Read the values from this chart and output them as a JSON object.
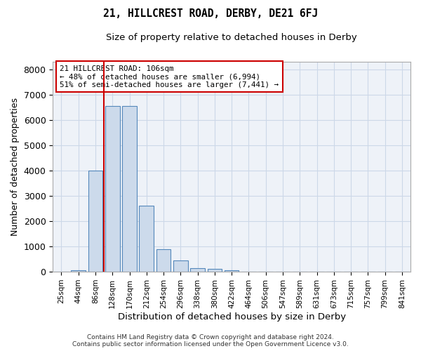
{
  "title": "21, HILLCREST ROAD, DERBY, DE21 6FJ",
  "subtitle": "Size of property relative to detached houses in Derby",
  "xlabel": "Distribution of detached houses by size in Derby",
  "ylabel": "Number of detached properties",
  "bin_labels": [
    "25sqm",
    "44sqm",
    "86sqm",
    "128sqm",
    "170sqm",
    "212sqm",
    "254sqm",
    "296sqm",
    "338sqm",
    "380sqm",
    "422sqm",
    "464sqm",
    "506sqm",
    "547sqm",
    "589sqm",
    "631sqm",
    "673sqm",
    "715sqm",
    "757sqm",
    "799sqm",
    "841sqm"
  ],
  "bar_values": [
    0,
    50,
    4000,
    6550,
    6550,
    2600,
    900,
    450,
    150,
    100,
    50,
    0,
    0,
    0,
    0,
    0,
    0,
    0,
    0,
    0,
    0
  ],
  "bar_color": "#ccdaeb",
  "bar_edge_color": "#5588bb",
  "bar_edge_width": 0.8,
  "vline_x": 2.5,
  "vline_color": "#cc0000",
  "ylim": [
    0,
    8300
  ],
  "yticks": [
    0,
    1000,
    2000,
    3000,
    4000,
    5000,
    6000,
    7000,
    8000
  ],
  "annotation_text": "21 HILLCREST ROAD: 106sqm\n← 48% of detached houses are smaller (6,994)\n51% of semi-detached houses are larger (7,441) →",
  "annotation_box_color": "#ffffff",
  "annotation_border_color": "#cc0000",
  "footer_line1": "Contains HM Land Registry data © Crown copyright and database right 2024.",
  "footer_line2": "Contains public sector information licensed under the Open Government Licence v3.0.",
  "grid_color": "#ccd8e8",
  "background_color": "#eef2f8"
}
